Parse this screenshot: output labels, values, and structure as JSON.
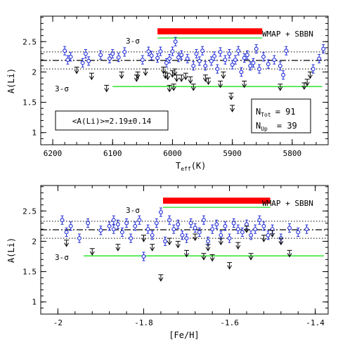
{
  "colors": {
    "data": "#1f2bd6",
    "upper": "#000000",
    "wmap": "#ff0000",
    "sigma": "#00e000",
    "mean": "#000000"
  },
  "mean_line": 2.19,
  "dotted_lines": [
    2.05,
    2.33
  ],
  "top_panel": {
    "ylabel": "A(Li)",
    "xlabel_main": "T",
    "xlabel_sub": "eff",
    "xlabel_unit": "(K)",
    "annot_wmap": "WMAP + SBBN",
    "annot_sigma_top": "3-σ",
    "annot_sigma_bot": "3-σ",
    "box_mean": "<A(Li)>=2.19±0.14",
    "ntot_label": "N",
    "ntot_sub": "Tot",
    "ntot_value": "= 91",
    "nup_label": "N",
    "nup_sub": "Up",
    "nup_value": "= 39"
  },
  "bottom_panel": {
    "ylabel": "A(Li)",
    "xlabel": "[Fe/H]",
    "annot_wmap": "WMAP + SBBN",
    "annot_sigma_top": "3-σ",
    "annot_sigma_bot": "3-σ"
  },
  "chart_data": [
    {
      "type": "scatter",
      "xlabel": "Teff(K)",
      "ylabel": "A(Li)",
      "xlim": [
        6220,
        5740
      ],
      "ylim": [
        0.8,
        2.92
      ],
      "xticks": [
        6200,
        6100,
        6000,
        5900,
        5800
      ],
      "yticks": [
        1,
        1.5,
        2,
        2.5
      ],
      "wmap_band": {
        "x": [
          6025,
          5850
        ],
        "y": [
          2.62,
          2.72
        ]
      },
      "sigma_upper": {
        "y": 2.56,
        "x": [
          6025,
          5850
        ]
      },
      "sigma_lower": {
        "y": 1.76,
        "x": [
          6100,
          5750
        ]
      },
      "series": [
        {
          "marker": "circle-errorbar",
          "x": [
            6180,
            6175,
            6170,
            6150,
            6145,
            6140,
            6120,
            6105,
            6100,
            6090,
            6080,
            6050,
            6040,
            6035,
            6025,
            6020,
            6010,
            6005,
            6000,
            5995,
            5990,
            5985,
            5975,
            5965,
            5960,
            5955,
            5950,
            5945,
            5935,
            5930,
            5925,
            5920,
            5912,
            5905,
            5900,
            5895,
            5890,
            5885,
            5880,
            5875,
            5870,
            5865,
            5860,
            5855,
            5848,
            5840,
            5830,
            5820,
            5815,
            5810,
            5765,
            5755,
            5748
          ],
          "y": [
            2.35,
            2.2,
            2.25,
            2.15,
            2.3,
            2.18,
            2.28,
            2.22,
            2.3,
            2.24,
            2.33,
            2.2,
            2.34,
            2.27,
            2.23,
            2.34,
            2.15,
            2.22,
            2.34,
            2.5,
            2.24,
            2.28,
            2.22,
            2.1,
            2.3,
            2.18,
            2.35,
            2.1,
            2.18,
            2.26,
            2.05,
            2.33,
            2.2,
            2.3,
            2.12,
            2.2,
            2.35,
            2.0,
            2.23,
            2.28,
            2.1,
            2.15,
            2.38,
            2.05,
            2.25,
            2.13,
            2.2,
            2.1,
            1.95,
            2.35,
            2.05,
            2.22,
            2.38
          ],
          "err": 0.07
        },
        {
          "marker": "upper-limit",
          "x": [
            6160,
            6135,
            6110,
            6085,
            6060,
            6058,
            6045,
            6015,
            6012,
            6008,
            6005,
            6000,
            5998,
            5996,
            5993,
            5985,
            5978,
            5970,
            5965,
            5945,
            5940,
            5920,
            5915,
            5902,
            5900,
            5880,
            5820,
            5780,
            5775,
            5770
          ],
          "y": [
            2.08,
            1.98,
            1.78,
            2.0,
            1.95,
            2.0,
            2.05,
            2.08,
            2.0,
            1.98,
            1.78,
            2.02,
            1.8,
            2.05,
            1.95,
            1.95,
            1.98,
            1.92,
            1.8,
            1.95,
            1.9,
            1.85,
            2.0,
            1.65,
            1.45,
            1.85,
            1.8,
            1.82,
            1.88,
            2.0
          ]
        }
      ]
    },
    {
      "type": "scatter",
      "xlabel": "[Fe/H]",
      "ylabel": "A(Li)",
      "xlim": [
        -2.04,
        -1.37
      ],
      "ylim": [
        0.8,
        2.92
      ],
      "xticks": [
        -2,
        -1.8,
        -1.6,
        -1.4
      ],
      "yticks": [
        1,
        1.5,
        2,
        2.5
      ],
      "wmap_band": {
        "x": [
          -1.755,
          -1.505
        ],
        "y": [
          2.62,
          2.72
        ]
      },
      "sigma_upper": {
        "y": 2.56,
        "x": [
          -1.755,
          -1.505
        ]
      },
      "sigma_lower": {
        "y": 1.76,
        "x": [
          -1.94,
          -1.38
        ]
      },
      "series": [
        {
          "marker": "circle-errorbar",
          "x": [
            -1.99,
            -1.98,
            -1.97,
            -1.95,
            -1.93,
            -1.9,
            -1.88,
            -1.87,
            -1.87,
            -1.86,
            -1.85,
            -1.84,
            -1.83,
            -1.82,
            -1.81,
            -1.8,
            -1.79,
            -1.78,
            -1.77,
            -1.76,
            -1.75,
            -1.74,
            -1.73,
            -1.72,
            -1.71,
            -1.7,
            -1.69,
            -1.68,
            -1.67,
            -1.66,
            -1.65,
            -1.64,
            -1.63,
            -1.62,
            -1.61,
            -1.6,
            -1.59,
            -1.58,
            -1.57,
            -1.56,
            -1.55,
            -1.54,
            -1.53,
            -1.52,
            -1.51,
            -1.5,
            -1.48,
            -1.46,
            -1.44,
            -1.42
          ],
          "y": [
            2.35,
            2.15,
            2.25,
            2.05,
            2.3,
            2.18,
            2.25,
            2.35,
            2.2,
            2.28,
            2.15,
            2.3,
            2.05,
            2.25,
            2.35,
            1.75,
            2.2,
            2.1,
            2.3,
            2.48,
            2.0,
            2.35,
            2.2,
            2.28,
            2.1,
            2.05,
            2.3,
            2.22,
            2.15,
            2.35,
            2.0,
            2.2,
            2.28,
            2.1,
            2.25,
            2.05,
            2.3,
            2.2,
            2.15,
            2.28,
            2.1,
            2.2,
            2.35,
            2.25,
            2.1,
            2.2,
            2.05,
            2.22,
            2.15,
            2.2
          ],
          "err": 0.07
        },
        {
          "marker": "upper-limit",
          "x": [
            -1.98,
            -1.92,
            -1.86,
            -1.8,
            -1.78,
            -1.76,
            -1.74,
            -1.72,
            -1.7,
            -1.68,
            -1.66,
            -1.65,
            -1.64,
            -1.62,
            -1.6,
            -1.58,
            -1.56,
            -1.55,
            -1.52,
            -1.5,
            -1.48,
            -1.46
          ],
          "y": [
            2.02,
            1.88,
            1.95,
            2.1,
            1.95,
            1.45,
            2.05,
            2.0,
            1.85,
            2.12,
            1.8,
            1.95,
            1.78,
            2.05,
            1.65,
            1.98,
            2.25,
            1.8,
            2.1,
            2.18,
            2.05,
            1.85
          ]
        }
      ]
    }
  ]
}
